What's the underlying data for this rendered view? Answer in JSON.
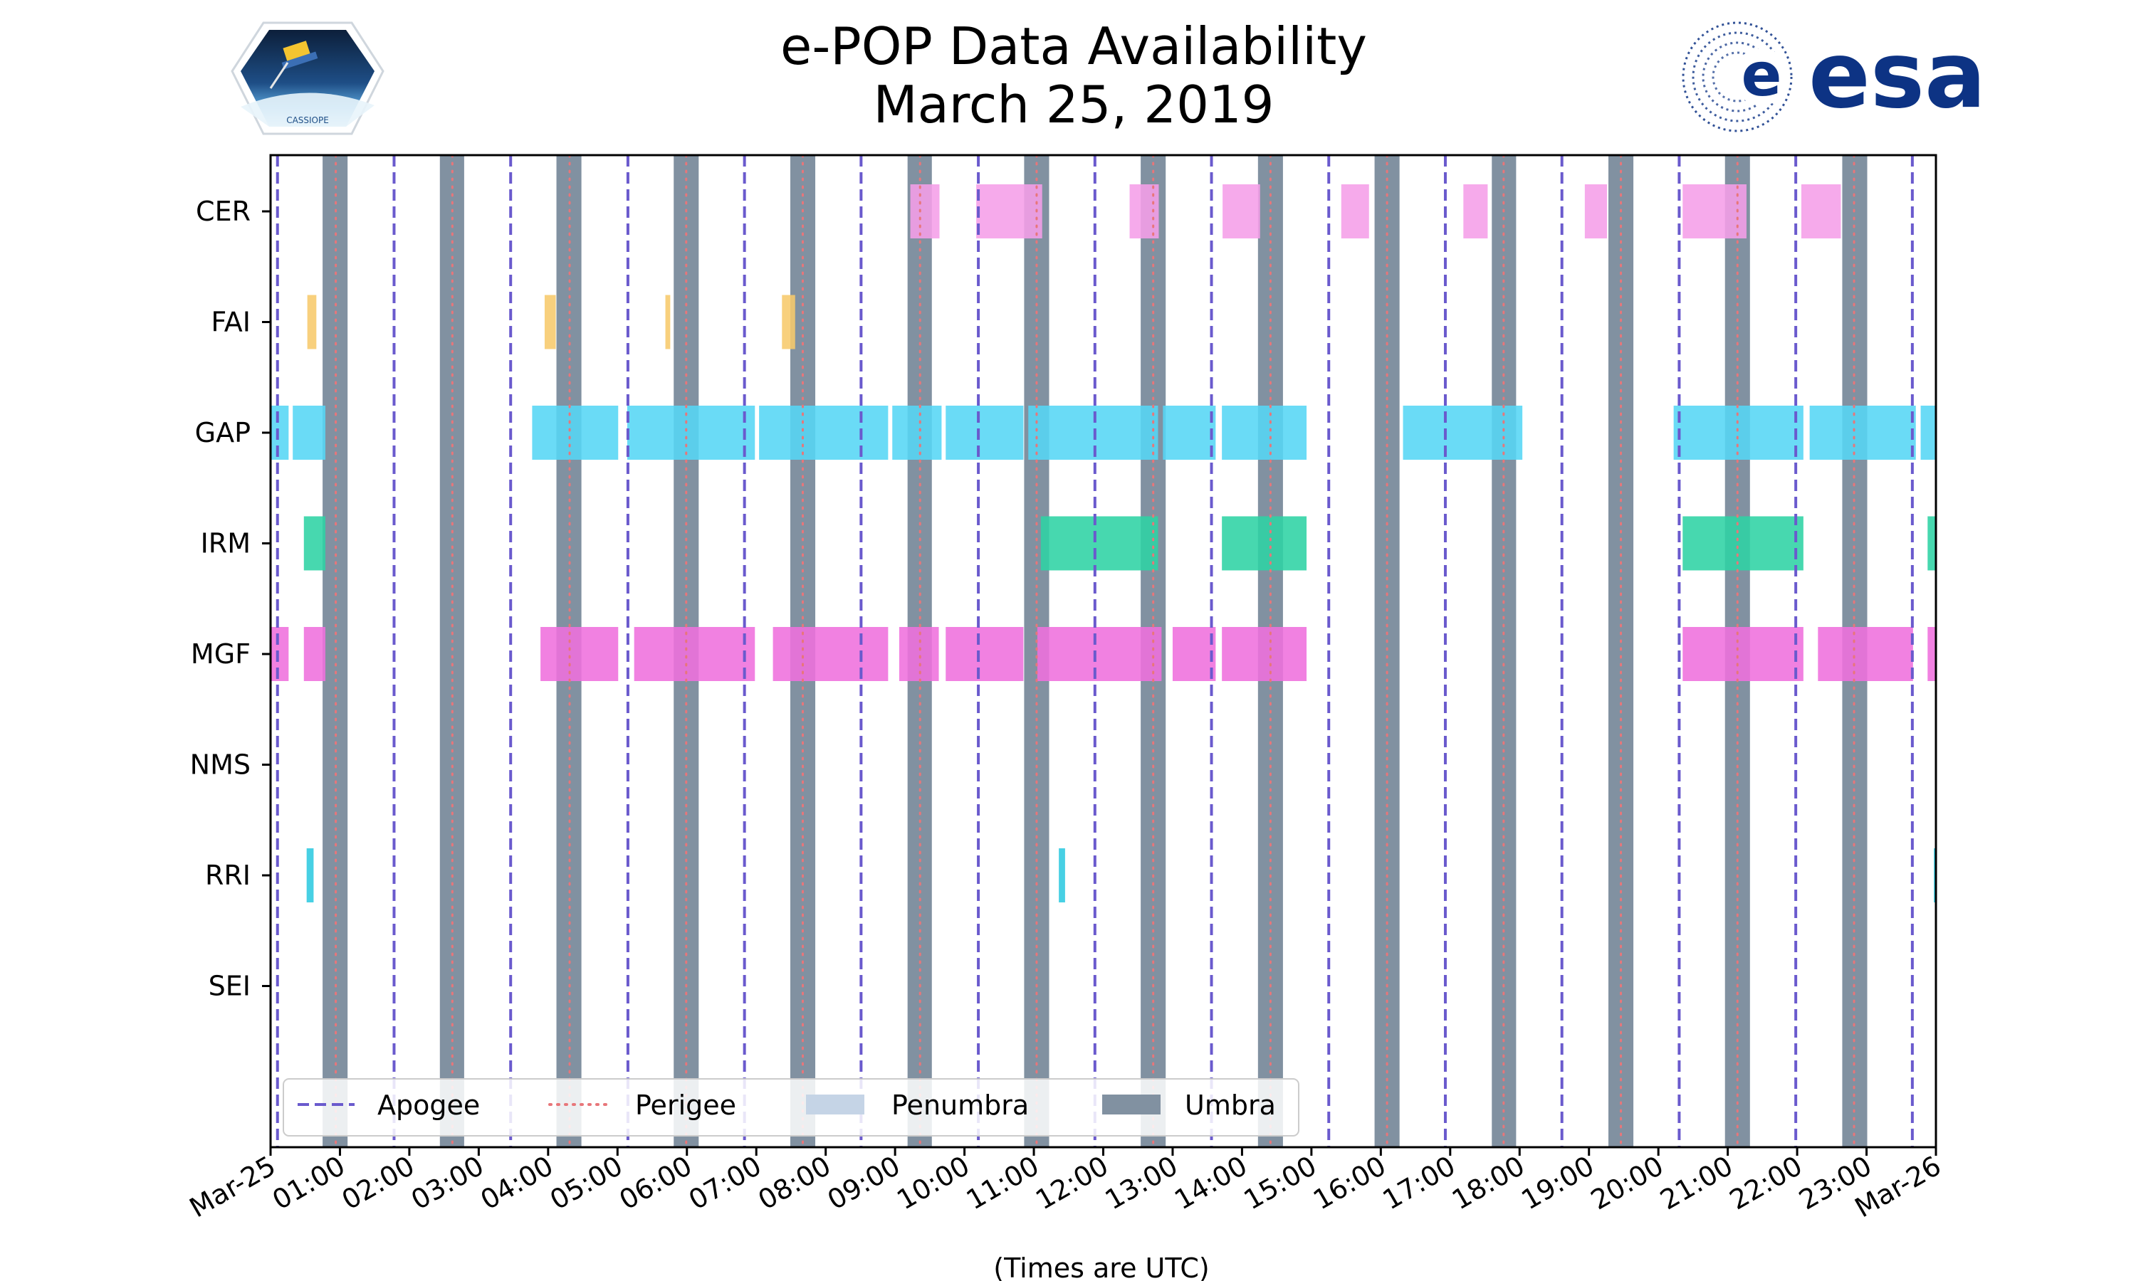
{
  "header": {
    "title_line1": "e-POP Data Availability",
    "title_line2": "March 25, 2019",
    "esa_logo_text": "esa",
    "mission_logo_text": "CASSIOPE"
  },
  "colors": {
    "apogee": "#6a5acd",
    "perigee": "#e8767a",
    "penumbra": "#c5d4e6",
    "umbra": "#8191a1"
  },
  "chart_data": {
    "type": "timeline",
    "title": "e-POP Data Availability\nMarch 25, 2019",
    "xlabel": "(Times are UTC)",
    "ylabel": "",
    "x_range_hours": [
      0,
      24
    ],
    "tick_labels": [
      "Mar-25",
      "01:00",
      "02:00",
      "03:00",
      "04:00",
      "05:00",
      "06:00",
      "07:00",
      "08:00",
      "09:00",
      "10:00",
      "11:00",
      "12:00",
      "13:00",
      "14:00",
      "15:00",
      "16:00",
      "17:00",
      "18:00",
      "19:00",
      "20:00",
      "21:00",
      "22:00",
      "23:00",
      "Mar-26"
    ],
    "instruments": [
      "CER",
      "FAI",
      "GAP",
      "IRM",
      "MGF",
      "NMS",
      "RRI",
      "SEI"
    ],
    "apogee_hours": [
      0.1,
      1.78,
      3.46,
      5.15,
      6.83,
      8.51,
      10.2,
      11.88,
      13.56,
      15.25,
      16.93,
      18.61,
      20.3,
      21.98,
      23.66
    ],
    "perigee_hours": [
      0.94,
      2.62,
      4.31,
      5.99,
      7.67,
      9.36,
      11.04,
      12.72,
      14.41,
      16.09,
      17.77,
      19.46,
      21.14,
      22.82
    ],
    "umbra_intervals": [
      [
        0.75,
        1.11
      ],
      [
        2.44,
        2.79
      ],
      [
        4.12,
        4.48
      ],
      [
        5.81,
        6.17
      ],
      [
        7.49,
        7.85
      ],
      [
        9.18,
        9.53
      ],
      [
        10.86,
        11.22
      ],
      [
        12.54,
        12.9
      ],
      [
        14.23,
        14.59
      ],
      [
        15.91,
        16.27
      ],
      [
        17.6,
        17.95
      ],
      [
        19.28,
        19.64
      ],
      [
        20.96,
        21.32
      ],
      [
        22.65,
        23.01
      ]
    ],
    "availability": [
      {
        "instrument": "CER",
        "color": "#f59ee8",
        "intervals": [
          [
            9.22,
            9.64
          ],
          [
            10.17,
            11.12
          ],
          [
            12.38,
            12.8
          ],
          [
            13.72,
            14.26
          ],
          [
            15.43,
            15.83
          ],
          [
            17.19,
            17.54
          ],
          [
            18.94,
            19.26
          ],
          [
            20.35,
            21.27
          ],
          [
            22.06,
            22.63
          ]
        ]
      },
      {
        "instrument": "FAI",
        "color": "#f7c96b",
        "intervals": [
          [
            0.53,
            0.66
          ],
          [
            3.95,
            4.11
          ],
          [
            5.69,
            5.76
          ],
          [
            7.37,
            7.56
          ]
        ]
      },
      {
        "instrument": "GAP",
        "color": "#55d6f5",
        "intervals": [
          [
            0.0,
            0.26
          ],
          [
            0.32,
            0.79
          ],
          [
            3.77,
            5.01
          ],
          [
            5.14,
            6.98
          ],
          [
            7.04,
            8.9
          ],
          [
            8.96,
            9.67
          ],
          [
            9.73,
            10.85
          ],
          [
            10.92,
            12.79
          ],
          [
            12.86,
            13.62
          ],
          [
            13.71,
            14.93
          ],
          [
            16.32,
            18.04
          ],
          [
            20.22,
            22.09
          ],
          [
            22.18,
            23.71
          ],
          [
            23.78,
            24.0
          ]
        ]
      },
      {
        "instrument": "IRM",
        "color": "#2ed3a4",
        "intervals": [
          [
            0.48,
            0.79
          ],
          [
            11.1,
            12.79
          ],
          [
            13.71,
            14.93
          ],
          [
            20.35,
            22.09
          ],
          [
            23.88,
            24.0
          ]
        ]
      },
      {
        "instrument": "MGF",
        "color": "#ef6fdd",
        "intervals": [
          [
            0.0,
            0.26
          ],
          [
            0.48,
            0.79
          ],
          [
            3.89,
            5.01
          ],
          [
            5.24,
            6.98
          ],
          [
            7.24,
            8.9
          ],
          [
            9.06,
            9.63
          ],
          [
            9.73,
            10.85
          ],
          [
            11.05,
            12.84
          ],
          [
            13.0,
            13.62
          ],
          [
            13.71,
            14.93
          ],
          [
            20.35,
            22.09
          ],
          [
            22.3,
            23.67
          ],
          [
            23.88,
            24.0
          ]
        ]
      },
      {
        "instrument": "NMS",
        "color": "#ef6fdd",
        "intervals": []
      },
      {
        "instrument": "RRI",
        "color": "#2ec9e0",
        "intervals": [
          [
            0.52,
            0.62
          ],
          [
            11.36,
            11.45
          ],
          [
            23.97,
            24.0
          ]
        ]
      },
      {
        "instrument": "SEI",
        "color": "#8c8c8c",
        "intervals": []
      }
    ],
    "legend": {
      "placement": "lower-left",
      "entries": [
        "Apogee",
        "Perigee",
        "Penumbra",
        "Umbra"
      ]
    }
  }
}
